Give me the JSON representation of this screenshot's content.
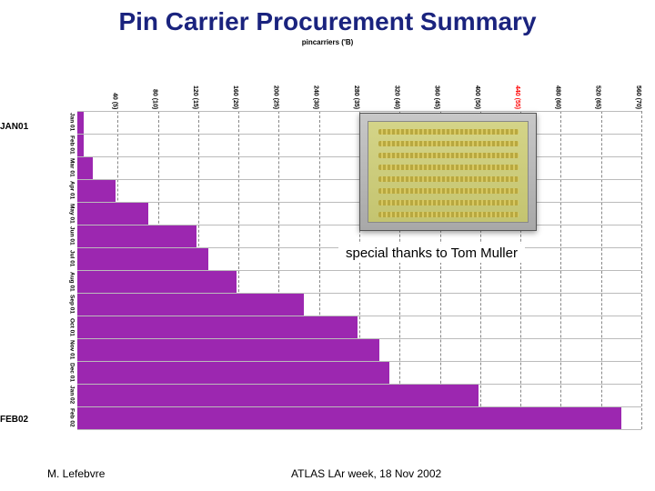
{
  "title": "Pin Carrier Procurement Summary",
  "subtitle": "pincarriers ('B)",
  "thanks": "special thanks to Tom Muller",
  "footer_left": "M. Lefebvre",
  "footer_center": "ATLAS LAr week, 18 Nov 2002",
  "edge_labels": {
    "jan01": "JAN01",
    "feb02": "FEB02"
  },
  "chart": {
    "type": "bar-horizontal",
    "bar_color": "#9c27b0",
    "grid_color": "#888888",
    "highlight_tick_color": "#ff0000",
    "tick_color": "#000000",
    "background": "#ffffff",
    "x_max": 560,
    "x_ticks": [
      {
        "v": 40,
        "label": "40 (5)"
      },
      {
        "v": 80,
        "label": "80 (10)"
      },
      {
        "v": 120,
        "label": "120 (15)"
      },
      {
        "v": 160,
        "label": "160 (20)"
      },
      {
        "v": 200,
        "label": "200 (25)"
      },
      {
        "v": 240,
        "label": "240 (30)"
      },
      {
        "v": 280,
        "label": "280 (35)"
      },
      {
        "v": 320,
        "label": "320 (40)"
      },
      {
        "v": 360,
        "label": "360 (45)"
      },
      {
        "v": 400,
        "label": "400 (50)"
      },
      {
        "v": 440,
        "label": "440 (55)",
        "highlight": true
      },
      {
        "v": 480,
        "label": "480 (60)"
      },
      {
        "v": 520,
        "label": "520 (65)"
      },
      {
        "v": 560,
        "label": "560 (70)"
      }
    ],
    "bars": [
      {
        "label": "Jan 01",
        "value": 6
      },
      {
        "label": "Feb 01",
        "value": 6
      },
      {
        "label": "Mar 01",
        "value": 15
      },
      {
        "label": "Apr 01",
        "value": 38
      },
      {
        "label": "May 01",
        "value": 70
      },
      {
        "label": "Jun 01",
        "value": 118
      },
      {
        "label": "Jul 01",
        "value": 130
      },
      {
        "label": "Aug 01",
        "value": 158
      },
      {
        "label": "Sep 01",
        "value": 225
      },
      {
        "label": "Oct 01",
        "value": 278
      },
      {
        "label": "Nov 01",
        "value": 300
      },
      {
        "label": "Dec 01",
        "value": 310
      },
      {
        "label": "Jan 02",
        "value": 398
      },
      {
        "label": "Feb 02",
        "value": 540
      }
    ]
  },
  "photo": {
    "rows": 8
  }
}
